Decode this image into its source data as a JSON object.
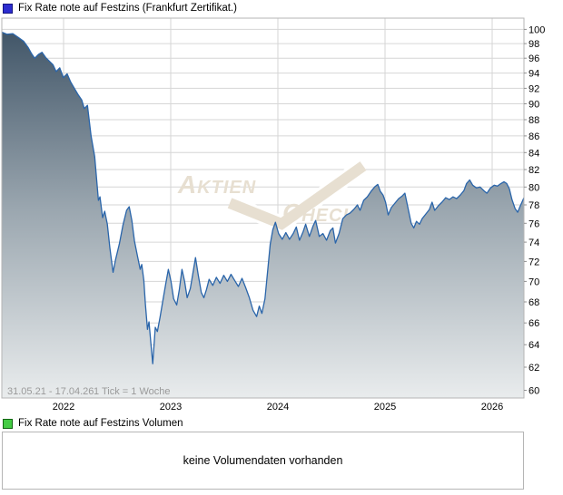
{
  "header": {
    "title": "Fix Rate note auf Festzins (Frankfurt Zertifikat.)"
  },
  "volume": {
    "legend_label": "Fix Rate note auf Festzins Volumen",
    "empty_message": "keine Volumendaten vorhanden"
  },
  "watermark": {
    "word1": "Aktien",
    "word2": "Check"
  },
  "colors": {
    "price_legend_swatch": "#2d2dd0",
    "price_legend_border": "#151580",
    "volume_legend_swatch": "#44cc44",
    "volume_legend_border": "#116611",
    "line": "#2a65aa",
    "fill_top": "#3b5063",
    "fill_mid": "#9aa6af",
    "fill_bottom": "#e9eced",
    "grid": "#d6d6d6",
    "plot_border": "#b5b5b5",
    "axis_tick": "#909090",
    "axis_text": "#000000",
    "info_text": "#9a9a9a",
    "watermark": "#e7dfd1"
  },
  "chart_data": {
    "type": "area",
    "title": "Fix Rate note auf Festzins (Frankfurt Zertifikat.)",
    "date_range_label": "31.05.21 - 17.04.26",
    "tick_info_label": "1 Tick = 1 Woche",
    "x_axis": {
      "labels": [
        "2022",
        "2023",
        "2024",
        "2025",
        "2026"
      ],
      "fractions": [
        0.1183,
        0.3235,
        0.5287,
        0.7339,
        0.9391
      ]
    },
    "y_axis": {
      "scale": "log",
      "tick_min": 60,
      "tick_max": 100,
      "tick_step": 2,
      "top_value": 101.6,
      "bottom_value": 59.35
    },
    "legend_position": "top-left",
    "grid": true,
    "series": [
      {
        "name": "Fix Rate note auf Festzins",
        "points": [
          [
            0.0,
            99.6
          ],
          [
            0.01,
            99.3
          ],
          [
            0.021,
            99.4
          ],
          [
            0.031,
            98.9
          ],
          [
            0.042,
            98.3
          ],
          [
            0.05,
            97.5
          ],
          [
            0.057,
            96.6
          ],
          [
            0.063,
            96.0
          ],
          [
            0.07,
            96.5
          ],
          [
            0.077,
            96.8
          ],
          [
            0.084,
            96.1
          ],
          [
            0.091,
            95.6
          ],
          [
            0.098,
            95.1
          ],
          [
            0.104,
            94.2
          ],
          [
            0.111,
            94.7
          ],
          [
            0.118,
            93.4
          ],
          [
            0.125,
            93.9
          ],
          [
            0.132,
            92.8
          ],
          [
            0.139,
            92.0
          ],
          [
            0.146,
            91.2
          ],
          [
            0.153,
            90.5
          ],
          [
            0.158,
            89.4
          ],
          [
            0.164,
            89.8
          ],
          [
            0.171,
            86.0
          ],
          [
            0.178,
            83.5
          ],
          [
            0.185,
            78.5
          ],
          [
            0.188,
            78.9
          ],
          [
            0.193,
            76.6
          ],
          [
            0.197,
            77.3
          ],
          [
            0.202,
            75.9
          ],
          [
            0.207,
            73.4
          ],
          [
            0.213,
            70.9
          ],
          [
            0.218,
            72.2
          ],
          [
            0.225,
            73.8
          ],
          [
            0.232,
            75.8
          ],
          [
            0.239,
            77.4
          ],
          [
            0.244,
            77.8
          ],
          [
            0.249,
            76.3
          ],
          [
            0.254,
            74.1
          ],
          [
            0.26,
            72.5
          ],
          [
            0.265,
            71.2
          ],
          [
            0.268,
            71.7
          ],
          [
            0.272,
            70.1
          ],
          [
            0.275,
            67.8
          ],
          [
            0.279,
            65.4
          ],
          [
            0.282,
            66.1
          ],
          [
            0.286,
            63.9
          ],
          [
            0.289,
            62.3
          ],
          [
            0.294,
            65.6
          ],
          [
            0.298,
            65.2
          ],
          [
            0.303,
            66.5
          ],
          [
            0.308,
            68.0
          ],
          [
            0.314,
            69.8
          ],
          [
            0.319,
            71.2
          ],
          [
            0.324,
            70.0
          ],
          [
            0.329,
            68.3
          ],
          [
            0.335,
            67.7
          ],
          [
            0.34,
            69.2
          ],
          [
            0.345,
            71.2
          ],
          [
            0.35,
            70.0
          ],
          [
            0.355,
            68.4
          ],
          [
            0.361,
            69.3
          ],
          [
            0.366,
            70.8
          ],
          [
            0.371,
            72.4
          ],
          [
            0.376,
            70.7
          ],
          [
            0.382,
            68.9
          ],
          [
            0.387,
            68.4
          ],
          [
            0.392,
            69.2
          ],
          [
            0.397,
            70.2
          ],
          [
            0.404,
            69.6
          ],
          [
            0.411,
            70.4
          ],
          [
            0.418,
            69.8
          ],
          [
            0.425,
            70.6
          ],
          [
            0.432,
            70.0
          ],
          [
            0.439,
            70.7
          ],
          [
            0.446,
            70.1
          ],
          [
            0.453,
            69.5
          ],
          [
            0.46,
            70.3
          ],
          [
            0.467,
            69.4
          ],
          [
            0.474,
            68.4
          ],
          [
            0.481,
            67.2
          ],
          [
            0.488,
            66.6
          ],
          [
            0.493,
            67.6
          ],
          [
            0.498,
            66.9
          ],
          [
            0.504,
            68.3
          ],
          [
            0.509,
            71.0
          ],
          [
            0.514,
            73.8
          ],
          [
            0.519,
            75.3
          ],
          [
            0.524,
            76.1
          ],
          [
            0.53,
            74.9
          ],
          [
            0.537,
            74.3
          ],
          [
            0.544,
            75.0
          ],
          [
            0.551,
            74.3
          ],
          [
            0.558,
            74.9
          ],
          [
            0.564,
            75.6
          ],
          [
            0.57,
            74.2
          ],
          [
            0.577,
            75.1
          ],
          [
            0.582,
            75.9
          ],
          [
            0.589,
            74.6
          ],
          [
            0.596,
            75.7
          ],
          [
            0.601,
            76.3
          ],
          [
            0.608,
            74.6
          ],
          [
            0.615,
            74.9
          ],
          [
            0.622,
            74.2
          ],
          [
            0.629,
            75.2
          ],
          [
            0.634,
            75.5
          ],
          [
            0.639,
            73.9
          ],
          [
            0.646,
            74.9
          ],
          [
            0.653,
            76.5
          ],
          [
            0.66,
            76.9
          ],
          [
            0.667,
            77.1
          ],
          [
            0.674,
            77.5
          ],
          [
            0.681,
            78.0
          ],
          [
            0.686,
            77.4
          ],
          [
            0.693,
            78.5
          ],
          [
            0.7,
            78.9
          ],
          [
            0.707,
            79.5
          ],
          [
            0.714,
            80.0
          ],
          [
            0.72,
            80.3
          ],
          [
            0.725,
            79.5
          ],
          [
            0.73,
            79.1
          ],
          [
            0.735,
            78.3
          ],
          [
            0.74,
            76.9
          ],
          [
            0.746,
            77.7
          ],
          [
            0.753,
            78.2
          ],
          [
            0.76,
            78.7
          ],
          [
            0.767,
            79.0
          ],
          [
            0.772,
            79.3
          ],
          [
            0.777,
            77.9
          ],
          [
            0.784,
            76.0
          ],
          [
            0.789,
            75.5
          ],
          [
            0.794,
            76.2
          ],
          [
            0.8,
            75.9
          ],
          [
            0.805,
            76.5
          ],
          [
            0.812,
            77.0
          ],
          [
            0.819,
            77.5
          ],
          [
            0.824,
            78.3
          ],
          [
            0.829,
            77.4
          ],
          [
            0.836,
            77.9
          ],
          [
            0.843,
            78.3
          ],
          [
            0.85,
            78.8
          ],
          [
            0.857,
            78.6
          ],
          [
            0.864,
            78.9
          ],
          [
            0.871,
            78.7
          ],
          [
            0.878,
            79.1
          ],
          [
            0.885,
            79.6
          ],
          [
            0.89,
            80.4
          ],
          [
            0.896,
            80.8
          ],
          [
            0.902,
            80.2
          ],
          [
            0.909,
            79.9
          ],
          [
            0.916,
            80.0
          ],
          [
            0.923,
            79.6
          ],
          [
            0.929,
            79.3
          ],
          [
            0.936,
            79.9
          ],
          [
            0.943,
            80.2
          ],
          [
            0.949,
            80.1
          ],
          [
            0.956,
            80.4
          ],
          [
            0.962,
            80.6
          ],
          [
            0.967,
            80.4
          ],
          [
            0.972,
            79.8
          ],
          [
            0.977,
            78.6
          ],
          [
            0.983,
            77.6
          ],
          [
            0.988,
            77.2
          ],
          [
            0.993,
            77.9
          ],
          [
            1.0,
            78.8
          ]
        ]
      }
    ]
  }
}
